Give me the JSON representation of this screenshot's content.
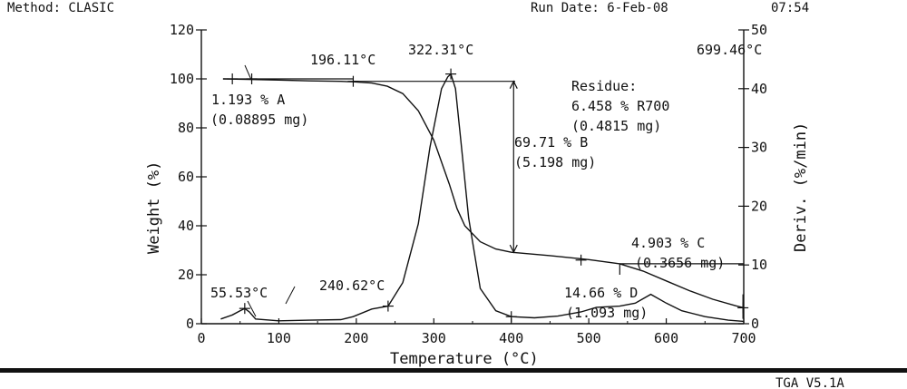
{
  "header": {
    "method": "Method: CLASIC",
    "run_date": "Run Date: 6-Feb-08",
    "run_time": "07:54"
  },
  "footer": {
    "version": "TGA V5.1A"
  },
  "chart_data": {
    "type": "line",
    "xlabel": "Temperature (°C)",
    "ylabel": "Weight (%)",
    "y2label": "Deriv. (%/min)",
    "xlim": [
      0,
      700
    ],
    "ylim": [
      0,
      120
    ],
    "y2lim": [
      0,
      50
    ],
    "x_ticks": [
      0,
      100,
      200,
      300,
      400,
      500,
      600,
      700
    ],
    "y_ticks": [
      0,
      20,
      40,
      60,
      80,
      100,
      120
    ],
    "y2_ticks": [
      0,
      10,
      20,
      30,
      40,
      50
    ],
    "grid": false,
    "colors": {
      "ink": "#111111",
      "background": "#ffffff"
    },
    "series": [
      {
        "axis": "left",
        "x": [
          28,
          60,
          100,
          140,
          180,
          196,
          220,
          240,
          260,
          280,
          300,
          320,
          330,
          340,
          360,
          380,
          400,
          450,
          500,
          540,
          570,
          600,
          630,
          660,
          690,
          700
        ],
        "y": [
          100,
          99.8,
          99.5,
          99.2,
          99.0,
          98.8,
          98.3,
          97,
          94,
          87,
          75,
          57,
          47,
          40,
          33.5,
          30.5,
          29.2,
          27.8,
          26.2,
          24.5,
          21.5,
          17.5,
          13.5,
          10,
          7.3,
          6.5
        ]
      },
      {
        "axis": "right",
        "x": [
          25,
          40,
          50,
          56,
          62,
          70,
          100,
          140,
          180,
          196,
          220,
          241,
          260,
          280,
          295,
          310,
          318,
          322,
          328,
          335,
          345,
          360,
          380,
          400,
          430,
          460,
          490,
          510,
          540,
          560,
          580,
          600,
          620,
          650,
          680,
          700
        ],
        "y": [
          0.8,
          1.5,
          2.2,
          2.6,
          2.0,
          0.8,
          0.5,
          0.6,
          0.7,
          1.2,
          2.5,
          3.0,
          7,
          17,
          30,
          40,
          42,
          42.5,
          40,
          31,
          18,
          6,
          2.2,
          1.2,
          1.0,
          1.3,
          2.0,
          2.8,
          3.0,
          3.5,
          5.0,
          3.5,
          2.2,
          1.2,
          0.6,
          0.4
        ]
      }
    ],
    "annotations": {
      "peak1": "55.53°C",
      "onset": "196.11°C",
      "peak2": "322.31°C",
      "end_temp": "699.46°C",
      "peak3": "240.62°C",
      "step_a": "1.193 % A",
      "step_a_mass": "(0.08895 mg)",
      "step_b": "69.71 % B",
      "step_b_mass": "(5.198 mg)",
      "residue_title": "Residue:",
      "residue_pct": "6.458 % R700",
      "residue_mass": "(0.4815 mg)",
      "step_c": "4.903 % C",
      "step_c_mass": "(0.3656 mg)",
      "step_d": "14.66 % D",
      "step_d_mass": "(1.093 mg)"
    }
  }
}
